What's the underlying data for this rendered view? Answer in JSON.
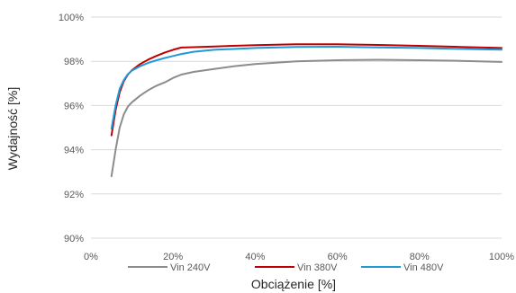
{
  "chart_data": {
    "type": "line",
    "xlabel": "Obciążenie [%]",
    "ylabel": "Wydajność [%]",
    "xlim": [
      0,
      100
    ],
    "ylim": [
      90,
      100
    ],
    "x_ticks": [
      0,
      20,
      40,
      60,
      80,
      100
    ],
    "y_ticks": [
      90,
      92,
      94,
      96,
      98,
      100
    ],
    "x_tick_labels": [
      "0%",
      "20%",
      "40%",
      "60%",
      "80%",
      "100%"
    ],
    "y_tick_labels": [
      "90%",
      "92%",
      "94%",
      "96%",
      "98%",
      "100%"
    ],
    "grid": "horizontal",
    "legend_position": "bottom",
    "series": [
      {
        "name": "Vin 240V",
        "color": "#8c8c8c",
        "x": [
          5,
          6,
          7,
          8,
          9,
          10,
          12,
          14,
          16,
          18,
          20,
          22,
          25,
          30,
          35,
          40,
          50,
          60,
          70,
          80,
          90,
          100
        ],
        "y": [
          92.8,
          94.0,
          95.0,
          95.6,
          95.95,
          96.15,
          96.45,
          96.7,
          96.9,
          97.05,
          97.25,
          97.4,
          97.52,
          97.65,
          97.78,
          97.88,
          98.0,
          98.05,
          98.07,
          98.05,
          98.02,
          97.97
        ]
      },
      {
        "name": "Vin 380V",
        "color": "#c00000",
        "x": [
          5,
          6,
          7,
          8,
          9,
          10,
          12,
          14,
          16,
          18,
          20,
          22,
          25,
          30,
          40,
          50,
          60,
          70,
          80,
          90,
          100
        ],
        "y": [
          94.65,
          95.8,
          96.6,
          97.1,
          97.4,
          97.6,
          97.88,
          98.08,
          98.25,
          98.4,
          98.52,
          98.62,
          98.64,
          98.67,
          98.73,
          98.77,
          98.77,
          98.74,
          98.7,
          98.65,
          98.6
        ]
      },
      {
        "name": "Vin 480V",
        "color": "#1f9ad6",
        "x": [
          5,
          6,
          7,
          8,
          9,
          10,
          12,
          14,
          16,
          18,
          20,
          22,
          25,
          30,
          40,
          50,
          60,
          70,
          80,
          90,
          100
        ],
        "y": [
          94.95,
          96.0,
          96.75,
          97.15,
          97.42,
          97.58,
          97.78,
          97.93,
          98.05,
          98.15,
          98.24,
          98.33,
          98.43,
          98.52,
          98.6,
          98.65,
          98.66,
          98.63,
          98.6,
          98.56,
          98.53
        ]
      }
    ]
  }
}
